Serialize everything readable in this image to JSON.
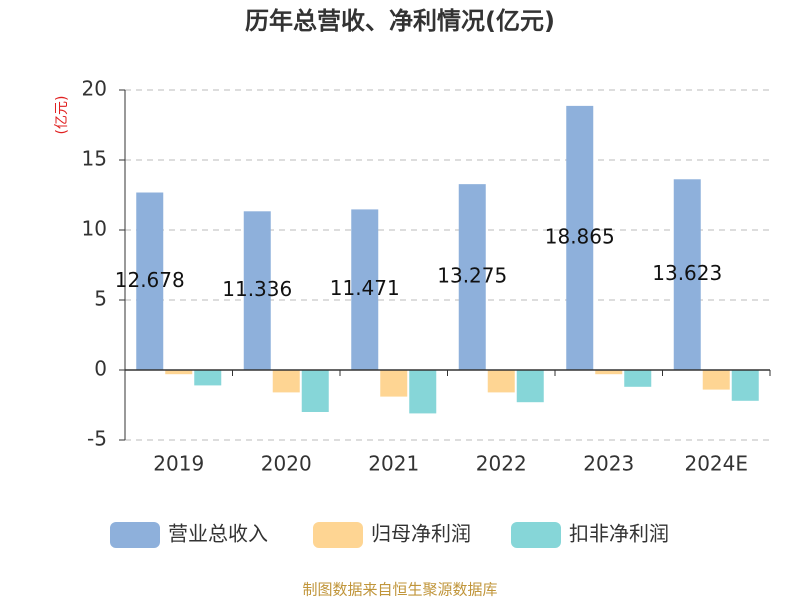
{
  "chart_data": {
    "type": "bar",
    "title": "历年总营收、净利情况(亿元)",
    "y_label": "(亿元)",
    "categories": [
      "2019",
      "2020",
      "2021",
      "2022",
      "2023",
      "2024E"
    ],
    "series": [
      {
        "name": "营业总收入",
        "color": "#8eb0db",
        "values": [
          12.678,
          11.336,
          11.471,
          13.275,
          18.865,
          13.623
        ],
        "show_labels": true
      },
      {
        "name": "归母净利润",
        "color": "#fed593",
        "values": [
          -0.3,
          -1.6,
          -1.9,
          -1.6,
          -0.3,
          -1.4
        ]
      },
      {
        "name": "扣非净利润",
        "color": "#86d6d8",
        "values": [
          -1.1,
          -3.0,
          -3.1,
          -2.3,
          -1.2,
          -2.2
        ]
      }
    ],
    "ylim": [
      -5,
      20
    ],
    "yticks": [
      -5,
      0,
      5,
      10,
      15,
      20
    ],
    "grid": true,
    "source": "制图数据来自恒生聚源数据库"
  }
}
